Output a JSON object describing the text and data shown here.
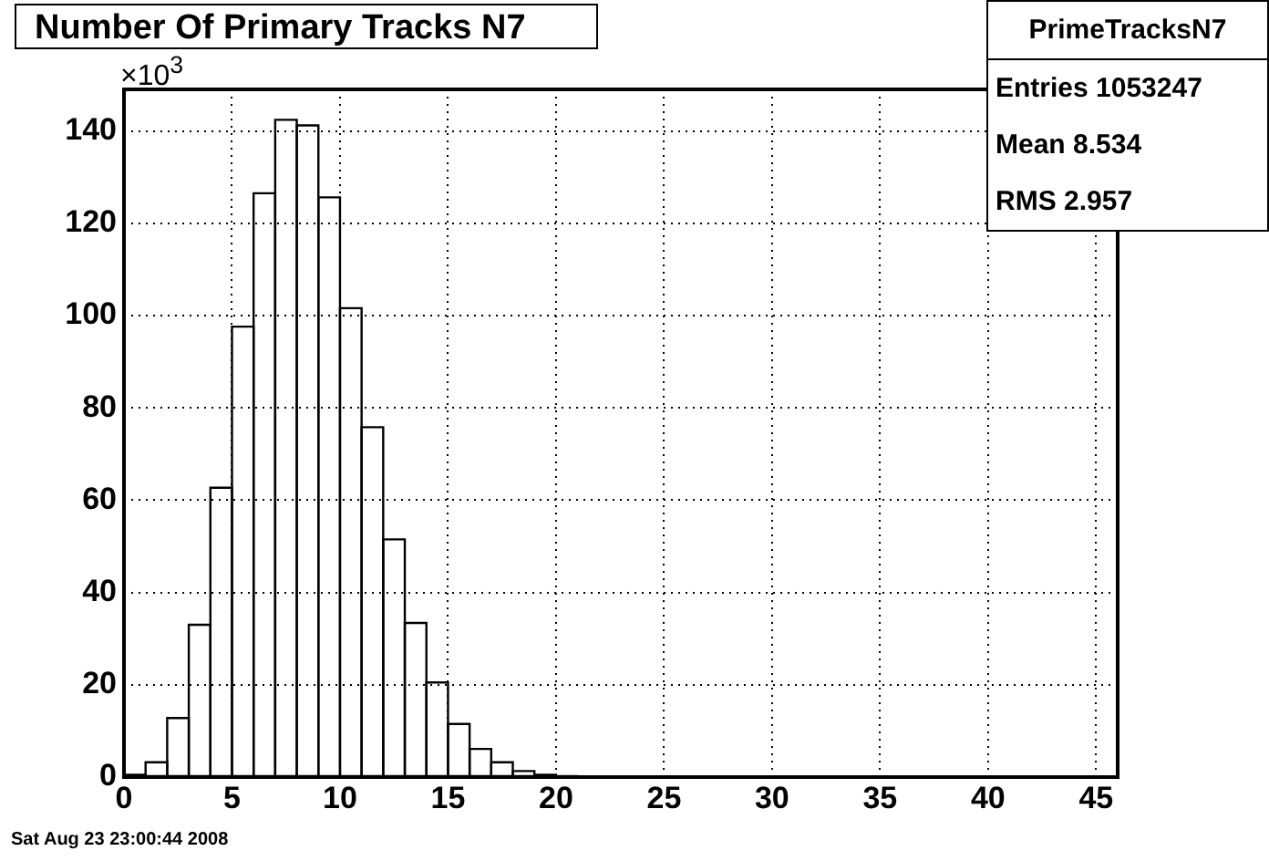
{
  "chart_data": {
    "type": "histogram",
    "title": "Number Of Primary Tracks N7",
    "ylabel": "×10$^{3}$",
    "bins": [
      0,
      1,
      2,
      3,
      4,
      5,
      6,
      7,
      8,
      9,
      10,
      11,
      12,
      13,
      14,
      15,
      16,
      17,
      18,
      19,
      20,
      21,
      22,
      23,
      24,
      25,
      26,
      27,
      28,
      29,
      30,
      31,
      32,
      33,
      34,
      35,
      36,
      37,
      38,
      39,
      40,
      41,
      42,
      43,
      44,
      45,
      46
    ],
    "values": [
      0.5,
      3.2,
      12.8,
      33,
      62.7,
      97.6,
      126.5,
      142.4,
      141.2,
      125.6,
      101.6,
      75.8,
      51.5,
      33.4,
      20.5,
      11.5,
      6.1,
      3.2,
      1.3,
      0.5,
      0.2,
      0,
      0,
      0,
      0,
      0,
      0,
      0,
      0,
      0,
      0,
      0,
      0,
      0,
      0,
      0,
      0,
      0,
      0,
      0,
      0,
      0,
      0,
      0,
      0,
      0
    ],
    "color": "#000000",
    "xlim": [
      0,
      46
    ],
    "xticks": [
      0,
      5,
      10,
      15,
      20,
      25,
      30,
      35,
      40,
      45
    ],
    "ylim": [
      0,
      149
    ],
    "yticks": [
      0,
      20,
      40,
      60,
      80,
      100,
      120,
      140
    ],
    "grid": true,
    "legend": false,
    "annotations": [
      "PrimeTracksN7",
      "Entries 1053247",
      "Mean 8.534",
      "RMS 2.957",
      "Sat Aug 23 23:00:44 2008"
    ]
  }
}
